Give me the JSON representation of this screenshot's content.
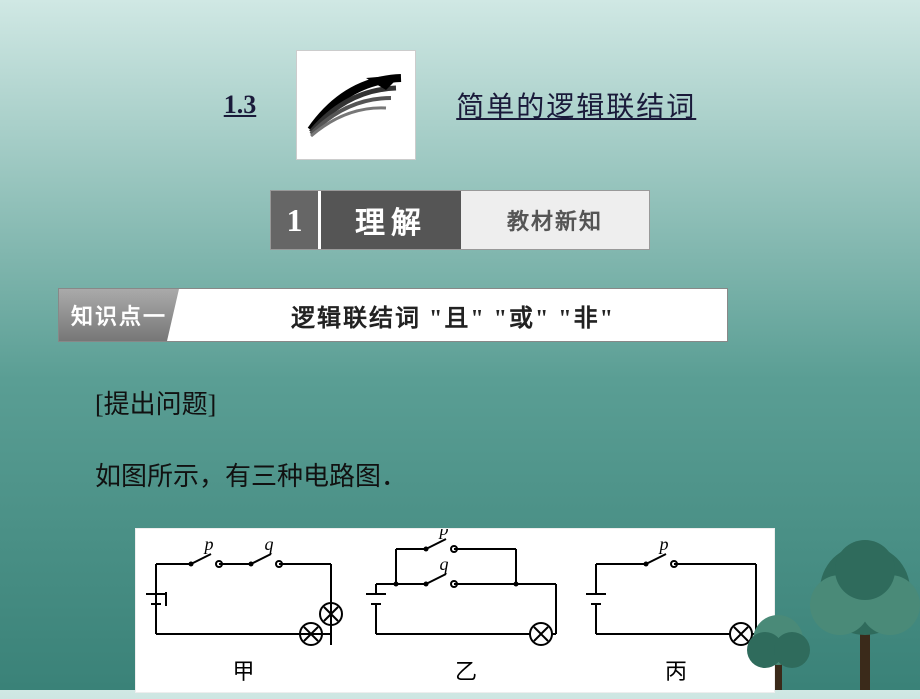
{
  "header": {
    "section_number": "1.3",
    "title": "简单的逻辑联结词"
  },
  "banner": {
    "number": "1",
    "main_text": "理解",
    "sub_text": "教材新知"
  },
  "topic": {
    "tag": "知识点一",
    "text": "逻辑联结词 \"且\" \"或\" \"非\""
  },
  "body": {
    "question_label": "[提出问题]",
    "intro": "如图所示，有三种电路图．"
  },
  "circuits": {
    "labels": [
      "甲",
      "乙",
      "丙"
    ],
    "switch_labels": {
      "p": "p",
      "q": "q"
    },
    "colors": {
      "box_bg": "#ffffff",
      "wire": "#000000",
      "text": "#000000"
    },
    "stroke_width": 2,
    "font_size_label": 22,
    "font_size_switch": 18,
    "font_style_switch": "italic"
  },
  "tree": {
    "colors": {
      "foliage": "#2f6b5c",
      "foliage_light": "#4a8a78",
      "trunk": "#3a2a1a"
    }
  }
}
